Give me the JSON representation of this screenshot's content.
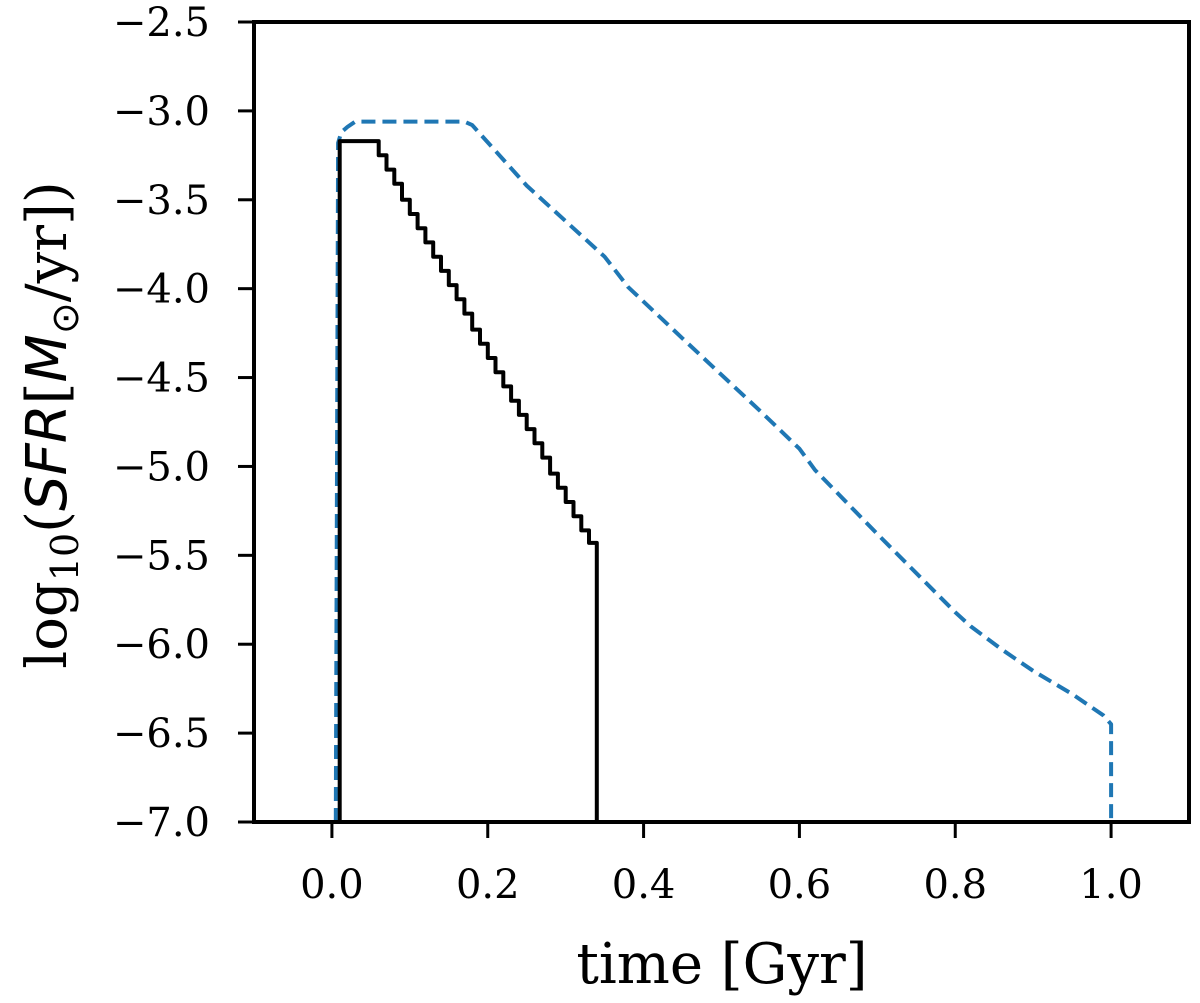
{
  "chart_data": {
    "type": "line",
    "title": "",
    "xlabel": "time [Gyr]",
    "ylabel": {
      "prefix": "log",
      "sub10": "10",
      "open": "(",
      "sfr": "SFR",
      "bracket_open": "[",
      "msym": "M",
      "odot": "⊙",
      "unit": "/yr",
      "bracket_close": "]",
      "close": ")"
    },
    "xlim": [
      -0.1,
      1.1
    ],
    "ylim": [
      -7.0,
      -2.5
    ],
    "xticks": [
      0.0,
      0.2,
      0.4,
      0.6,
      0.8,
      1.0
    ],
    "xtick_labels": [
      "0.0",
      "0.2",
      "0.4",
      "0.6",
      "0.8",
      "1.0"
    ],
    "yticks": [
      -2.5,
      -3.0,
      -3.5,
      -4.0,
      -4.5,
      -5.0,
      -5.5,
      -6.0,
      -6.5,
      -7.0
    ],
    "ytick_labels": [
      "−2.5",
      "−3.0",
      "−3.5",
      "−4.0",
      "−4.5",
      "−5.0",
      "−5.5",
      "−6.0",
      "−6.5",
      "−7.0"
    ],
    "grid": false,
    "series": [
      {
        "style": "dashed",
        "color": "#1f77b4",
        "x": [
          0.005,
          0.008,
          0.012,
          0.02,
          0.03,
          0.17,
          0.18,
          0.25,
          0.35,
          0.38,
          0.45,
          0.55,
          0.6,
          0.62,
          0.7,
          0.8,
          0.82,
          0.86,
          0.9,
          0.95,
          0.99,
          1.0,
          1.0
        ],
        "y": [
          -7.0,
          -3.18,
          -3.12,
          -3.09,
          -3.06,
          -3.06,
          -3.08,
          -3.42,
          -3.82,
          -3.99,
          -4.28,
          -4.69,
          -4.9,
          -5.02,
          -5.38,
          -5.82,
          -5.9,
          -6.03,
          -6.15,
          -6.28,
          -6.4,
          -6.45,
          -7.0
        ]
      },
      {
        "style": "solid",
        "color": "#000000",
        "x": [
          0.01,
          0.01,
          0.06,
          0.06,
          0.07,
          0.07,
          0.08,
          0.08,
          0.09,
          0.09,
          0.1,
          0.1,
          0.11,
          0.11,
          0.12,
          0.12,
          0.13,
          0.13,
          0.14,
          0.14,
          0.15,
          0.15,
          0.16,
          0.16,
          0.17,
          0.17,
          0.18,
          0.18,
          0.19,
          0.19,
          0.2,
          0.2,
          0.21,
          0.21,
          0.22,
          0.22,
          0.23,
          0.23,
          0.24,
          0.24,
          0.25,
          0.25,
          0.26,
          0.26,
          0.27,
          0.27,
          0.28,
          0.28,
          0.29,
          0.29,
          0.3,
          0.3,
          0.31,
          0.31,
          0.32,
          0.32,
          0.33,
          0.33,
          0.34,
          0.34
        ],
        "y": [
          -7.0,
          -3.17,
          -3.17,
          -3.25,
          -3.25,
          -3.33,
          -3.33,
          -3.41,
          -3.41,
          -3.5,
          -3.5,
          -3.58,
          -3.58,
          -3.66,
          -3.66,
          -3.74,
          -3.74,
          -3.82,
          -3.82,
          -3.9,
          -3.9,
          -3.98,
          -3.98,
          -4.06,
          -4.06,
          -4.14,
          -4.14,
          -4.23,
          -4.23,
          -4.31,
          -4.31,
          -4.39,
          -4.39,
          -4.47,
          -4.47,
          -4.55,
          -4.55,
          -4.63,
          -4.63,
          -4.71,
          -4.71,
          -4.79,
          -4.79,
          -4.87,
          -4.87,
          -4.95,
          -4.95,
          -5.04,
          -5.04,
          -5.12,
          -5.12,
          -5.2,
          -5.2,
          -5.28,
          -5.28,
          -5.36,
          -5.36,
          -5.43,
          -5.43,
          -7.0
        ]
      }
    ]
  }
}
